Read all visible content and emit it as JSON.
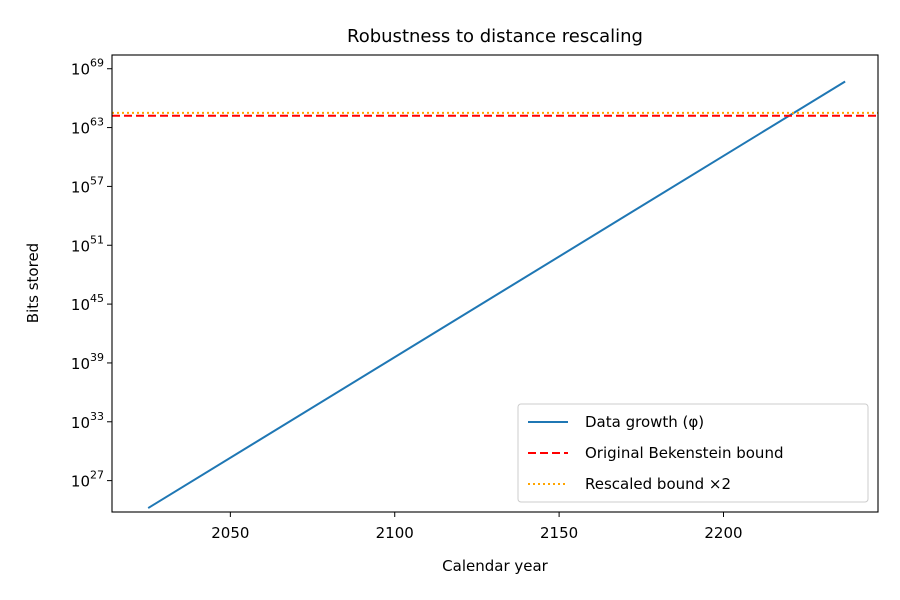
{
  "chart_data": {
    "type": "line",
    "title": "Robustness to distance rescaling",
    "xlabel": "Calendar year",
    "ylabel": "Bits stored",
    "xlim": [
      2014,
      2247
    ],
    "ylim_log10": [
      23.8,
      70.4
    ],
    "x_ticks": [
      2050,
      2100,
      2150,
      2200
    ],
    "y_ticks": [
      {
        "exp": 27,
        "base": "10",
        "sup": "27"
      },
      {
        "exp": 33,
        "base": "10",
        "sup": "33"
      },
      {
        "exp": 39,
        "base": "10",
        "sup": "39"
      },
      {
        "exp": 45,
        "base": "10",
        "sup": "45"
      },
      {
        "exp": 51,
        "base": "10",
        "sup": "51"
      },
      {
        "exp": 57,
        "base": "10",
        "sup": "57"
      },
      {
        "exp": 63,
        "base": "10",
        "sup": "63"
      },
      {
        "exp": 69,
        "base": "10",
        "sup": "69"
      }
    ],
    "series": [
      {
        "name": "Data growth (φ)",
        "style": "solid",
        "color": "#1f77b4",
        "x": [
          2025,
          2237
        ],
        "log10_y": [
          24.2,
          67.7
        ]
      },
      {
        "name": "Original Bekenstein bound",
        "style": "dashed",
        "color": "#ff0000",
        "hline_log10": 64.2
      },
      {
        "name": "Rescaled bound ×2",
        "style": "dotted",
        "color": "#ffa500",
        "hline_log10": 64.5
      }
    ],
    "legend_position": "lower-right",
    "grid": false
  }
}
